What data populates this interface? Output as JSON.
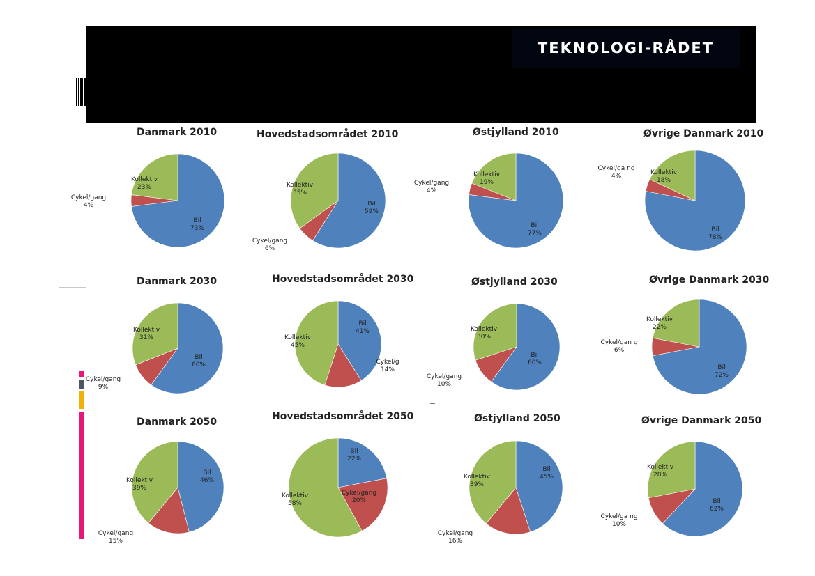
{
  "header": {
    "logo_text": "TEKNOLOGI-RÅDET"
  },
  "colors": {
    "bil": "#4f81bd",
    "cykel_gang": "#c0504d",
    "kollektiv": "#9bbb59",
    "accent_pink": "#e8187a",
    "accent_gray": "#4d5563",
    "accent_yellow": "#f3b10a"
  },
  "chart_data": [
    {
      "type": "pie",
      "title": "Danmark 2010",
      "slices": [
        {
          "label": "Bil",
          "value": 73
        },
        {
          "label": "Cykel/gang",
          "value": 4
        },
        {
          "label": "Kollektiv",
          "value": 23
        }
      ]
    },
    {
      "type": "pie",
      "title": "Hovedstadsområdet 2010",
      "slices": [
        {
          "label": "Bil",
          "value": 59
        },
        {
          "label": "Cykel/gang",
          "value": 6
        },
        {
          "label": "Kollektiv",
          "value": 35
        }
      ]
    },
    {
      "type": "pie",
      "title": "Østjylland 2010",
      "slices": [
        {
          "label": "Bil",
          "value": 77
        },
        {
          "label": "Cykel/gang",
          "value": 4
        },
        {
          "label": "Kollektiv",
          "value": 19
        }
      ]
    },
    {
      "type": "pie",
      "title": "Øvrige Danmark 2010",
      "slices": [
        {
          "label": "Bil",
          "value": 78
        },
        {
          "label": "Cykel/ga ng",
          "value": 4
        },
        {
          "label": "Kollektiv",
          "value": 18
        }
      ]
    },
    {
      "type": "pie",
      "title": "Danmark 2030",
      "slices": [
        {
          "label": "Bil",
          "value": 60
        },
        {
          "label": "Cykel/gang",
          "value": 9
        },
        {
          "label": "Kollektiv",
          "value": 31
        }
      ]
    },
    {
      "type": "pie",
      "title": "Hovedstadsområdet 2030",
      "slices": [
        {
          "label": "Bil",
          "value": 41
        },
        {
          "label": "Cykel/g",
          "value": 14
        },
        {
          "label": "Kollektiv",
          "value": 45
        }
      ]
    },
    {
      "type": "pie",
      "title": "Østjylland 2030",
      "slices": [
        {
          "label": "Bil",
          "value": 60
        },
        {
          "label": "Cykel/gang",
          "value": 10
        },
        {
          "label": "Kollektiv",
          "value": 30
        }
      ]
    },
    {
      "type": "pie",
      "title": "Øvrige Danmark 2030",
      "slices": [
        {
          "label": "Bil",
          "value": 72
        },
        {
          "label": "Cykel/gan g",
          "value": 6
        },
        {
          "label": "Kollektiv",
          "value": 22
        }
      ]
    },
    {
      "type": "pie",
      "title": "Danmark 2050",
      "slices": [
        {
          "label": "Bil",
          "value": 46
        },
        {
          "label": "Cykel/gang",
          "value": 15
        },
        {
          "label": "Kollektiv",
          "value": 39
        }
      ]
    },
    {
      "type": "pie",
      "title": "Hovedstadsområdet 2050",
      "slices": [
        {
          "label": "Bil",
          "value": 22
        },
        {
          "label": "Cykel/gang",
          "value": 20
        },
        {
          "label": "Kollektiv",
          "value": 58
        }
      ]
    },
    {
      "type": "pie",
      "title": "Østjylland 2050",
      "slices": [
        {
          "label": "Bil",
          "value": 45
        },
        {
          "label": "Cykel/gang",
          "value": 16
        },
        {
          "label": "Kollektiv",
          "value": 39
        }
      ]
    },
    {
      "type": "pie",
      "title": "Øvrige Danmark 2050",
      "slices": [
        {
          "label": "Bil",
          "value": 62
        },
        {
          "label": "Cykel/ga ng",
          "value": 10
        },
        {
          "label": "Kollektiv",
          "value": 28
        }
      ]
    }
  ]
}
